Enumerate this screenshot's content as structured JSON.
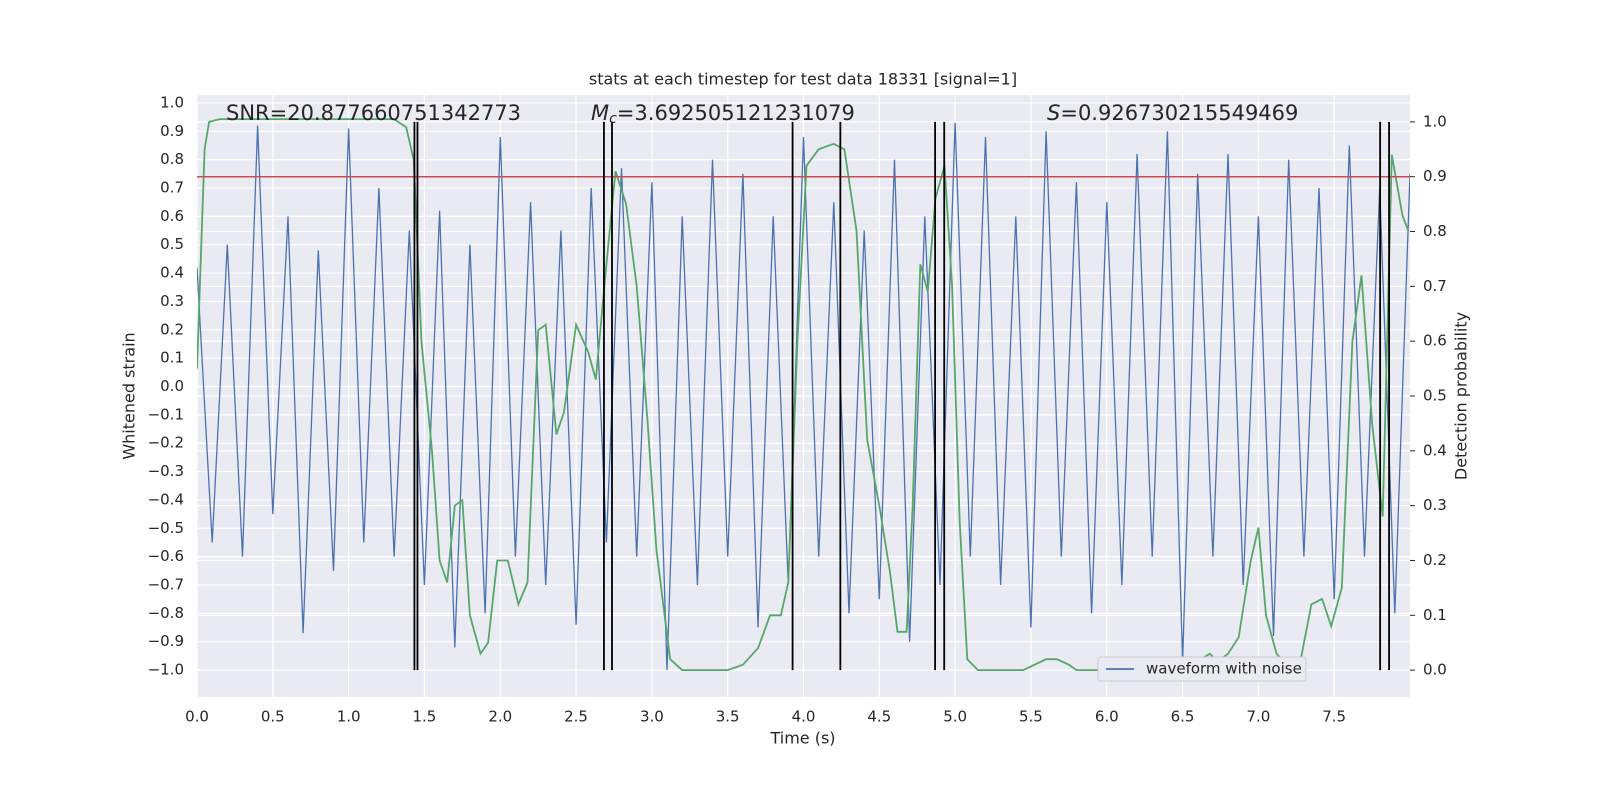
{
  "chart_data": {
    "type": "line",
    "title": "stats at each timestep for test data 18331 [signal=1]",
    "xlabel": "Time (s)",
    "ylabel": "Whitened strain",
    "y2label": "Detection probability",
    "annotations": [
      {
        "text": "SNR=20.877660751342773"
      },
      {
        "symbol": "M",
        "subscript": "c",
        "text": "=3.692505121231079"
      },
      {
        "symbol": "S",
        "text": "=0.926730215549469"
      }
    ],
    "xlim": [
      0,
      8
    ],
    "xticks": [
      {
        "value": 0,
        "label": "0.0"
      },
      0.5,
      {
        "value": 1,
        "label": "1.0"
      },
      1.5,
      {
        "value": 2,
        "label": "2.0"
      },
      2.5,
      {
        "value": 3,
        "label": "3.0"
      },
      3.5,
      {
        "value": 4,
        "label": "4.0"
      },
      4.5,
      {
        "value": 5,
        "label": "5.0"
      },
      5.5,
      {
        "value": 6,
        "label": "6.0"
      },
      6.5,
      {
        "value": 7,
        "label": "7.0"
      },
      7.5
    ],
    "ylim": [
      -1.095,
      1.028
    ],
    "yticks": [
      {
        "value": -1,
        "label": "−1.0"
      },
      {
        "value": -0.9,
        "label": "−0.9"
      },
      {
        "value": -0.8,
        "label": "−0.8"
      },
      {
        "value": -0.7,
        "label": "−0.7"
      },
      {
        "value": -0.6,
        "label": "−0.6"
      },
      {
        "value": -0.5,
        "label": "−0.5"
      },
      {
        "value": -0.4,
        "label": "−0.4"
      },
      {
        "value": -0.3,
        "label": "−0.3"
      },
      {
        "value": -0.2,
        "label": "−0.2"
      },
      {
        "value": -0.1,
        "label": "−0.1"
      },
      {
        "value": 0,
        "label": "0.0"
      },
      0.1,
      0.2,
      0.3,
      0.4,
      0.5,
      0.6,
      0.7,
      0.8,
      0.9,
      {
        "value": 1,
        "label": "1.0"
      }
    ],
    "y2lim": [
      -0.049,
      1.049
    ],
    "y2ticks": [
      {
        "value": 0,
        "label": "0.0"
      },
      0.1,
      0.2,
      0.3,
      0.4,
      0.5,
      0.6,
      0.7,
      0.8,
      0.9,
      {
        "value": 1,
        "label": "1.0"
      }
    ],
    "grid": true,
    "legend": "lower right",
    "series": [
      {
        "name": "waveform with noise",
        "color": "#4c72b0",
        "x": [
          0,
          0.1,
          0.2,
          0.3,
          0.4,
          0.5,
          0.6,
          0.7,
          0.8,
          0.9,
          1,
          1.1,
          1.2,
          1.3,
          1.4,
          1.5,
          1.6,
          1.7,
          1.8,
          1.9,
          2,
          2.1,
          2.2,
          2.3,
          2.4,
          2.5,
          2.6,
          2.7,
          2.8,
          2.9,
          3,
          3.1,
          3.2,
          3.3,
          3.4,
          3.5,
          3.6,
          3.7,
          3.8,
          3.9,
          4,
          4.1,
          4.2,
          4.3,
          4.4,
          4.5,
          4.6,
          4.7,
          4.8,
          4.9,
          5,
          5.1,
          5.2,
          5.3,
          5.4,
          5.5,
          5.6,
          5.7,
          5.8,
          5.9,
          6,
          6.1,
          6.2,
          6.3,
          6.4,
          6.5,
          6.6,
          6.7,
          6.8,
          6.9,
          7,
          7.1,
          7.2,
          7.3,
          7.4,
          7.5,
          7.6,
          7.7,
          7.8,
          7.9,
          8
        ],
        "values": [
          0.42,
          -0.55,
          0.5,
          -0.6,
          0.92,
          -0.45,
          0.6,
          -0.87,
          0.48,
          -0.65,
          0.91,
          -0.55,
          0.7,
          -0.6,
          0.55,
          -0.7,
          0.62,
          -0.92,
          0.5,
          -0.8,
          0.88,
          -0.6,
          0.65,
          -0.7,
          0.55,
          -0.84,
          0.7,
          -0.55,
          0.77,
          -0.6,
          0.72,
          -1.0,
          0.6,
          -0.7,
          0.8,
          -0.6,
          0.75,
          -0.85,
          0.6,
          -0.7,
          0.88,
          -0.6,
          0.65,
          -0.8,
          0.55,
          -0.75,
          0.8,
          -0.9,
          0.6,
          -0.7,
          0.93,
          -0.6,
          0.88,
          -0.7,
          0.6,
          -0.85,
          0.9,
          -0.6,
          0.72,
          -0.8,
          0.65,
          -0.7,
          0.82,
          -0.6,
          0.9,
          -0.97,
          0.75,
          -0.6,
          0.82,
          -0.7,
          0.6,
          -0.88,
          0.8,
          -0.6,
          0.7,
          -0.75,
          0.85,
          -0.6,
          0.7,
          -0.8,
          0.75
        ]
      },
      {
        "color": "#55a868",
        "axis": "y2",
        "x": [
          0,
          0.05,
          0.08,
          0.15,
          0.5,
          1,
          1.3,
          1.38,
          1.43,
          1.48,
          1.55,
          1.6,
          1.65,
          1.7,
          1.75,
          1.8,
          1.87,
          1.92,
          1.98,
          2.05,
          2.12,
          2.18,
          2.25,
          2.3,
          2.37,
          2.42,
          2.5,
          2.58,
          2.63,
          2.7,
          2.76,
          2.83,
          2.9,
          2.97,
          3.03,
          3.12,
          3.2,
          3.5,
          3.6,
          3.7,
          3.78,
          3.85,
          3.9,
          3.96,
          4.02,
          4.1,
          4.2,
          4.27,
          4.35,
          4.42,
          4.5,
          4.57,
          4.62,
          4.68,
          4.72,
          4.77,
          4.82,
          4.87,
          4.93,
          4.98,
          5.03,
          5.08,
          5.15,
          5.45,
          5.6,
          5.67,
          5.75,
          5.8,
          6,
          6.5,
          6.57,
          6.62,
          6.68,
          6.73,
          6.8,
          6.87,
          6.95,
          7,
          7.05,
          7.12,
          7.18,
          7.23,
          7.28,
          7.35,
          7.42,
          7.48,
          7.55,
          7.62,
          7.68,
          7.75,
          7.82,
          7.88,
          7.95,
          7.99
        ],
        "values": [
          0.55,
          0.95,
          1.0,
          1.005,
          1.005,
          1.005,
          1.005,
          0.99,
          0.93,
          0.6,
          0.4,
          0.2,
          0.16,
          0.3,
          0.31,
          0.1,
          0.03,
          0.05,
          0.2,
          0.2,
          0.12,
          0.16,
          0.62,
          0.63,
          0.43,
          0.47,
          0.63,
          0.58,
          0.53,
          0.74,
          0.91,
          0.85,
          0.7,
          0.46,
          0.22,
          0.02,
          0,
          0,
          0.01,
          0.04,
          0.1,
          0.1,
          0.16,
          0.6,
          0.92,
          0.95,
          0.96,
          0.95,
          0.8,
          0.42,
          0.3,
          0.18,
          0.07,
          0.07,
          0.3,
          0.74,
          0.69,
          0.86,
          0.92,
          0.7,
          0.27,
          0.02,
          0,
          0,
          0.02,
          0.02,
          0.01,
          0,
          0,
          0,
          0.01,
          0.02,
          0.03,
          0.015,
          0.03,
          0.06,
          0.2,
          0.26,
          0.1,
          0.03,
          0.01,
          0,
          0.02,
          0.12,
          0.13,
          0.08,
          0.15,
          0.6,
          0.72,
          0.45,
          0.28,
          0.94,
          0.83,
          0.8
        ]
      }
    ],
    "hline": {
      "value": 0.9,
      "axis": "y2",
      "color": "#c44e52"
    },
    "vlines": {
      "x": [
        1.434,
        1.454,
        2.684,
        2.737,
        3.928,
        4.243,
        4.868,
        4.928,
        7.803,
        7.862
      ],
      "y2": [
        0,
        1
      ],
      "color": "#000000"
    }
  }
}
